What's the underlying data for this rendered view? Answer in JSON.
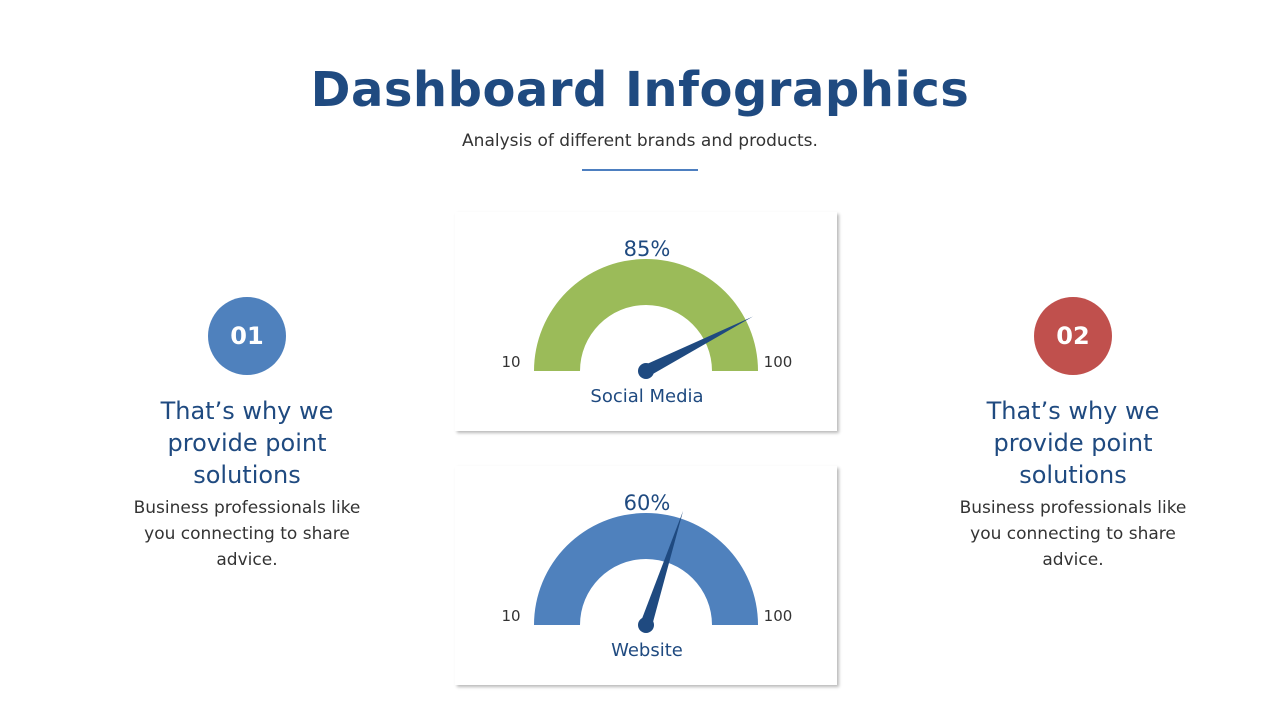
{
  "header": {
    "title": "Dashboard Infographics",
    "subtitle": "Analysis of different brands and products."
  },
  "colors": {
    "title": "#1f4a80",
    "green": "#9bbb59",
    "blue": "#4f81bd",
    "red": "#c0504d",
    "needle": "#1f4a80"
  },
  "left_panel": {
    "badge": "01",
    "heading": "That’s why we provide point solutions",
    "body": "Business professionals like you connecting to share advice."
  },
  "right_panel": {
    "badge": "02",
    "heading": "That’s why we provide point solutions",
    "body": "Business professionals like you connecting to share advice."
  },
  "gauges": [
    {
      "value_label": "85%",
      "value": 85,
      "min": "10",
      "max": "100",
      "label": "Social Media",
      "color": "#9bbb59"
    },
    {
      "value_label": "60%",
      "value": 60,
      "min": "10",
      "max": "100",
      "label": "Website",
      "color": "#4f81bd"
    }
  ]
}
